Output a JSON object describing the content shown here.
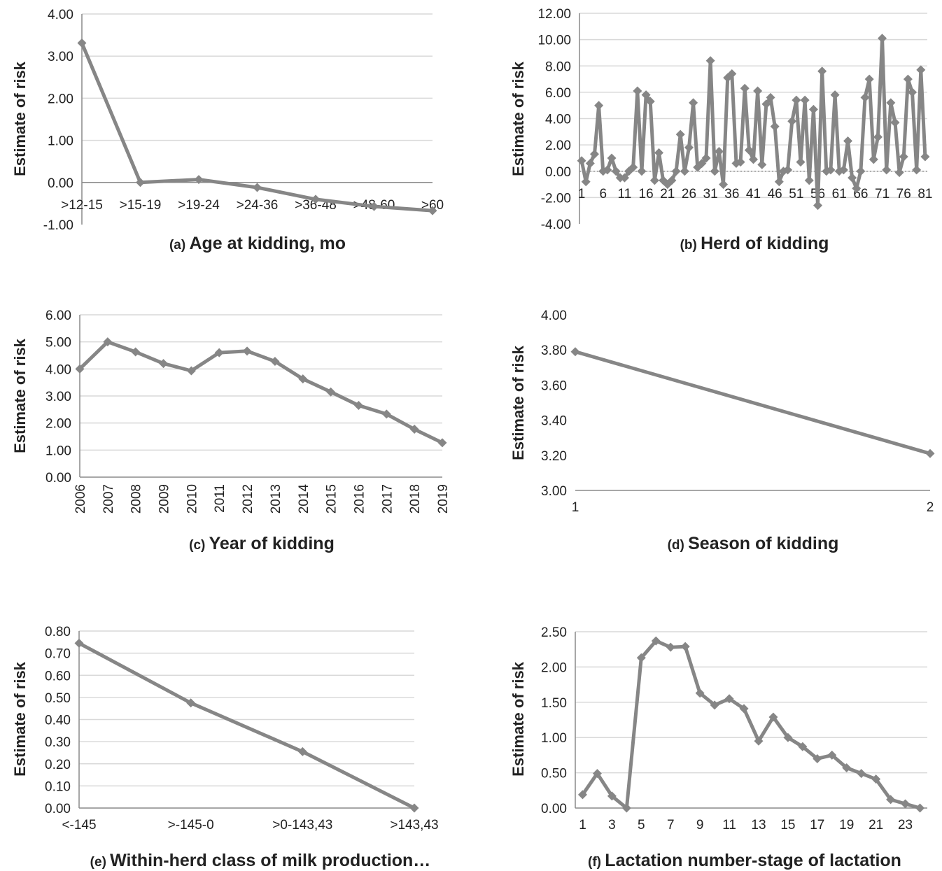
{
  "y_axis_label": "Estimate of risk",
  "series_color": "#868686",
  "chart_data": [
    {
      "type": "line",
      "caption_prefix": "(a)",
      "caption": "Age at kidding, mo",
      "ylabel": "Estimate of risk",
      "ylim": [
        -1,
        4
      ],
      "yticks": [
        "-1.00",
        "0.00",
        "1.00",
        "2.00",
        "3.00",
        "4.00"
      ],
      "categories": [
        ">12-15",
        ">15-19",
        ">19-24",
        ">24-36",
        ">36-48",
        ">48-60",
        ">60"
      ],
      "series": [
        {
          "values": [
            3.31,
            0.0,
            0.07,
            -0.12,
            -0.4,
            -0.57,
            -0.67
          ]
        }
      ],
      "grid": true
    },
    {
      "type": "line",
      "caption_prefix": "(b)",
      "caption": "Herd of kidding",
      "ylabel": "Estimate of risk",
      "ylim": [
        -4,
        12
      ],
      "yticks": [
        "-4.00",
        "-2.00",
        "0.00",
        "2.00",
        "4.00",
        "6.00",
        "8.00",
        "10.00",
        "12.00"
      ],
      "x": [
        1,
        2,
        3,
        4,
        5,
        6,
        7,
        8,
        9,
        10,
        11,
        12,
        13,
        14,
        15,
        16,
        17,
        18,
        19,
        20,
        21,
        22,
        23,
        24,
        25,
        26,
        27,
        28,
        29,
        30,
        31,
        32,
        33,
        34,
        35,
        36,
        37,
        38,
        39,
        40,
        41,
        42,
        43,
        44,
        45,
        46,
        47,
        48,
        49,
        50,
        51,
        52,
        53,
        54,
        55,
        56,
        57,
        58,
        59,
        60,
        61,
        62,
        63,
        64,
        65,
        66,
        67,
        68,
        69,
        70,
        71,
        72,
        73,
        74,
        75,
        76,
        77,
        78,
        79,
        80,
        81
      ],
      "xtick_labels": [
        "1",
        "6",
        "11",
        "16",
        "21",
        "26",
        "31",
        "36",
        "41",
        "46",
        "51",
        "56",
        "61",
        "66",
        "71",
        "76",
        "81"
      ],
      "series": [
        {
          "values": [
            0.8,
            -0.8,
            0.6,
            1.3,
            5.0,
            0.0,
            0.1,
            1.0,
            0.0,
            -0.5,
            -0.5,
            0.0,
            0.3,
            6.1,
            0.0,
            5.8,
            5.3,
            -0.7,
            1.4,
            -0.7,
            -1.0,
            -0.7,
            0.0,
            2.8,
            0.0,
            1.8,
            5.2,
            0.3,
            0.6,
            1.0,
            8.4,
            0.0,
            1.5,
            -1.0,
            7.1,
            7.4,
            0.6,
            0.7,
            6.3,
            1.6,
            0.9,
            6.1,
            0.5,
            5.1,
            5.6,
            3.4,
            -0.8,
            0.0,
            0.1,
            3.8,
            5.4,
            0.7,
            5.4,
            -0.7,
            4.7,
            -2.6,
            7.6,
            0.0,
            0.1,
            5.8,
            0.0,
            0.1,
            2.3,
            -0.5,
            -1.3,
            0.0,
            5.6,
            7.0,
            0.9,
            2.6,
            10.1,
            0.1,
            5.2,
            3.7,
            -0.1,
            1.1,
            7.0,
            6.0,
            0.1,
            7.7,
            1.1
          ]
        }
      ],
      "grid": true
    },
    {
      "type": "line",
      "caption_prefix": "(c)",
      "caption": "Year of kidding",
      "ylabel": "Estimate of risk",
      "ylim": [
        0,
        6
      ],
      "yticks": [
        "0.00",
        "1.00",
        "2.00",
        "3.00",
        "4.00",
        "5.00",
        "6.00"
      ],
      "categories": [
        "2006",
        "2007",
        "2008",
        "2009",
        "2010",
        "2011",
        "2012",
        "2013",
        "2014",
        "2015",
        "2016",
        "2017",
        "2018",
        "2019"
      ],
      "series": [
        {
          "values": [
            4.0,
            5.0,
            4.63,
            4.2,
            3.93,
            4.6,
            4.66,
            4.28,
            3.63,
            3.15,
            2.65,
            2.33,
            1.77,
            1.27
          ]
        }
      ],
      "grid": true
    },
    {
      "type": "line",
      "caption_prefix": "(d)",
      "caption": "Season of kidding",
      "ylabel": "Estimate of risk",
      "ylim": [
        3.0,
        4.0
      ],
      "yticks": [
        "3.00",
        "3.20",
        "3.40",
        "3.60",
        "3.80",
        "4.00"
      ],
      "categories": [
        "1",
        "2"
      ],
      "series": [
        {
          "values": [
            3.79,
            3.21
          ]
        }
      ],
      "grid": false
    },
    {
      "type": "line",
      "caption_prefix": "(e)",
      "caption": "Within-herd class of milk production…",
      "ylabel": "Estimate of risk",
      "ylim": [
        0,
        0.8
      ],
      "yticks": [
        "0.00",
        "0.10",
        "0.20",
        "0.30",
        "0.40",
        "0.50",
        "0.60",
        "0.70",
        "0.80"
      ],
      "categories": [
        "<-145",
        ">-145-0",
        ">0-143,43",
        ">143,43"
      ],
      "series": [
        {
          "values": [
            0.745,
            0.475,
            0.255,
            0.0
          ]
        }
      ],
      "grid": true
    },
    {
      "type": "line",
      "caption_prefix": "(f)",
      "caption": "Lactation number-stage of lactation",
      "ylabel": "Estimate of risk",
      "ylim": [
        0,
        2.5
      ],
      "yticks": [
        "0.00",
        "0.50",
        "1.00",
        "1.50",
        "2.00",
        "2.50"
      ],
      "x": [
        1,
        2,
        3,
        4,
        5,
        6,
        7,
        8,
        9,
        10,
        11,
        12,
        13,
        14,
        15,
        16,
        17,
        18,
        19,
        20,
        21,
        22,
        23,
        24
      ],
      "xtick_labels": [
        "1",
        "3",
        "5",
        "7",
        "9",
        "11",
        "13",
        "15",
        "17",
        "19",
        "21",
        "23"
      ],
      "series": [
        {
          "values": [
            0.19,
            0.49,
            0.17,
            0.0,
            2.13,
            2.37,
            2.28,
            2.29,
            1.63,
            1.46,
            1.55,
            1.41,
            0.95,
            1.29,
            1.0,
            0.87,
            0.7,
            0.75,
            0.57,
            0.49,
            0.41,
            0.12,
            0.06,
            0.0
          ]
        }
      ],
      "grid": true
    }
  ]
}
